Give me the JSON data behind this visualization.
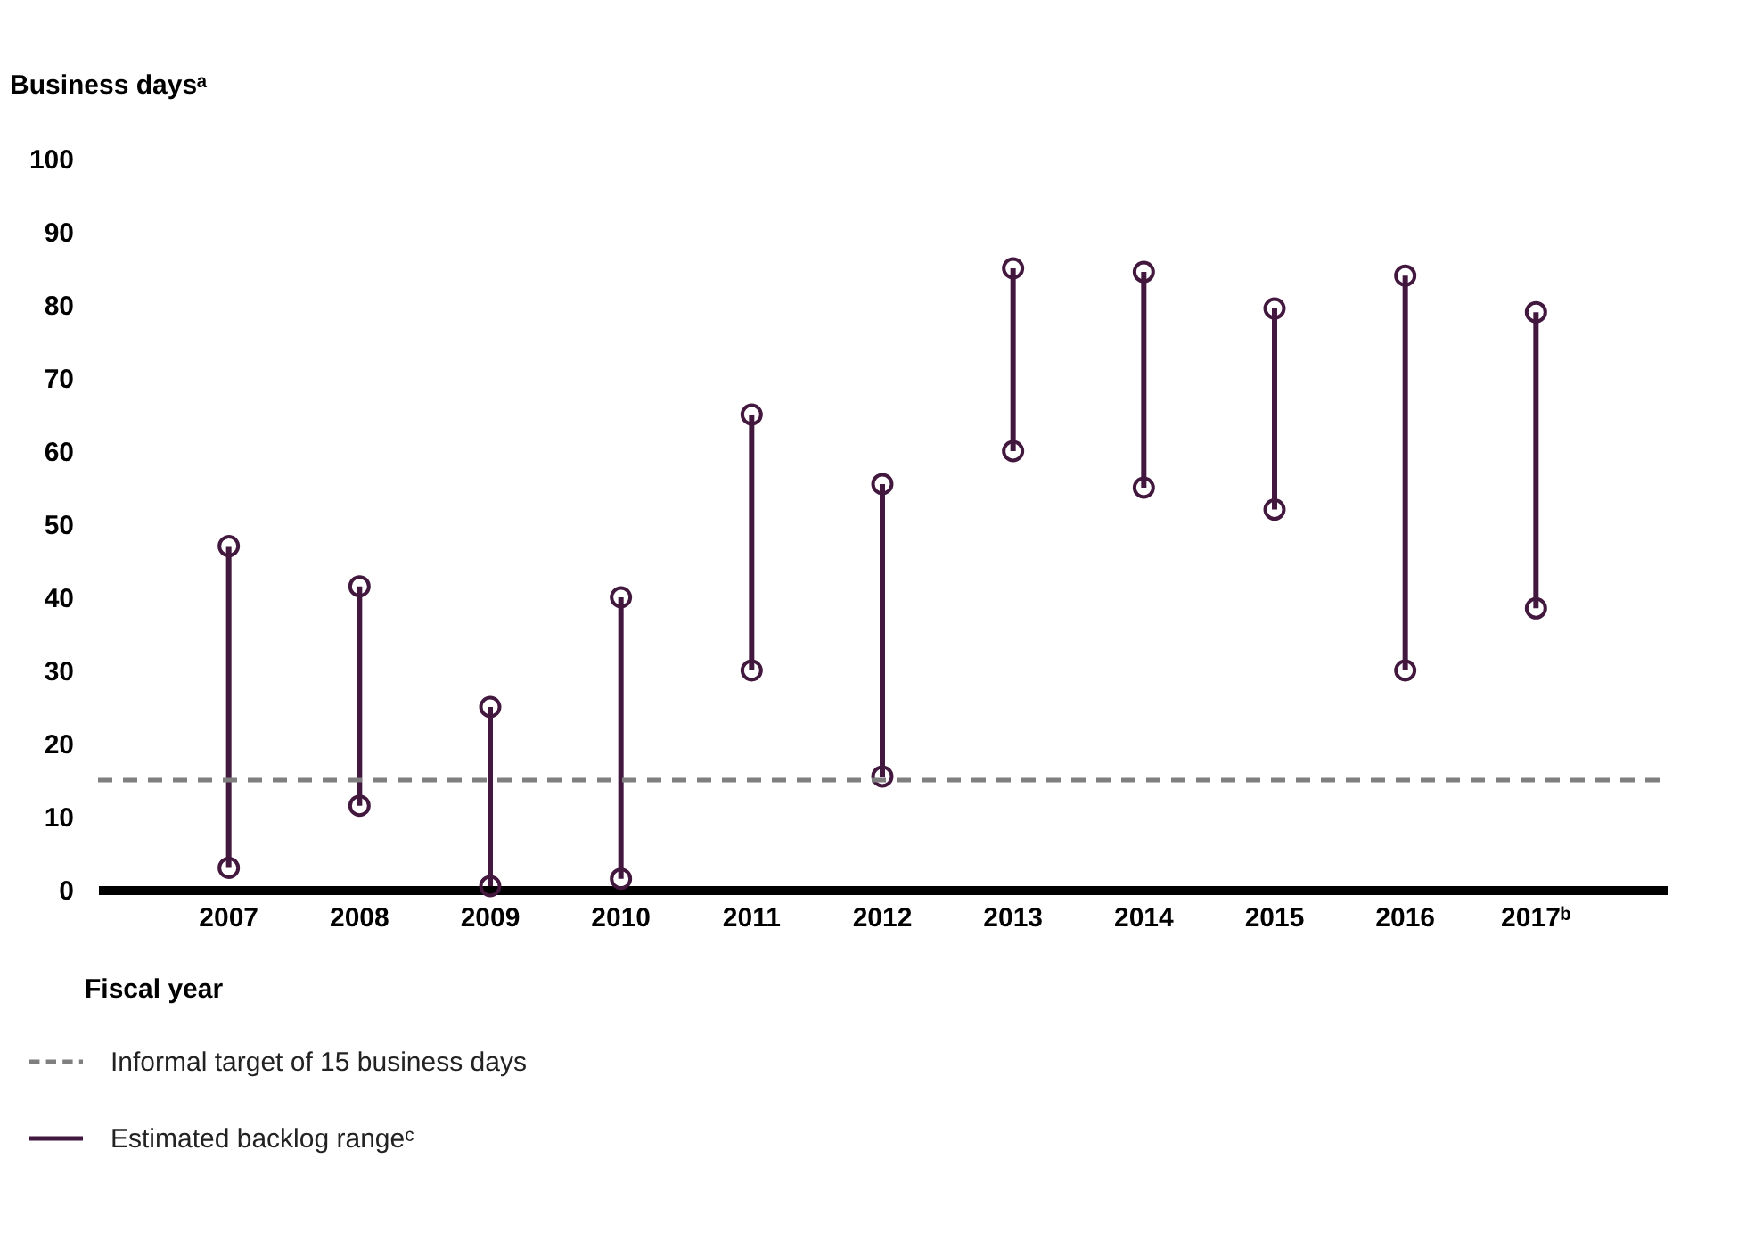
{
  "chart_data": {
    "type": "bar",
    "ylabel": "Business daysᵃ",
    "xlabel": "Fiscal year",
    "categories": [
      "2007",
      "2008",
      "2009",
      "2010",
      "2011",
      "2012",
      "2013",
      "2014",
      "2015",
      "2016",
      "2017ᵇ"
    ],
    "series": [
      {
        "name": "Estimated backlog rangeᶜ",
        "color": "#42183f",
        "base": [
          3,
          11.5,
          0.5,
          1.5,
          30,
          15.5,
          60,
          55,
          52,
          30,
          38.5
        ],
        "values": [
          44,
          30,
          24.5,
          38.5,
          35,
          40,
          25,
          29.5,
          27.5,
          54,
          40.5
        ]
      },
      {
        "type": "scatter",
        "color": "#42183f",
        "values": [
          3,
          11.5,
          0.5,
          1.5,
          30,
          15.5,
          60,
          55,
          52,
          30,
          38.5
        ]
      },
      {
        "type": "scatter",
        "color": "#42183f",
        "values": [
          47,
          41.5,
          25,
          40,
          65,
          55.5,
          85,
          84.5,
          79.5,
          84,
          79
        ]
      }
    ],
    "ref_lines": [
      {
        "axis": "y",
        "value": 15,
        "label": "Informal target of 15 business days",
        "color": "#7f7f7f",
        "line_style": "dashed"
      }
    ],
    "ylim": [
      0,
      100
    ],
    "yticks": [
      0,
      10,
      20,
      30,
      40,
      50,
      60,
      70,
      80,
      90,
      100
    ],
    "marker": "circle",
    "grid": false,
    "legend": "bottom"
  }
}
